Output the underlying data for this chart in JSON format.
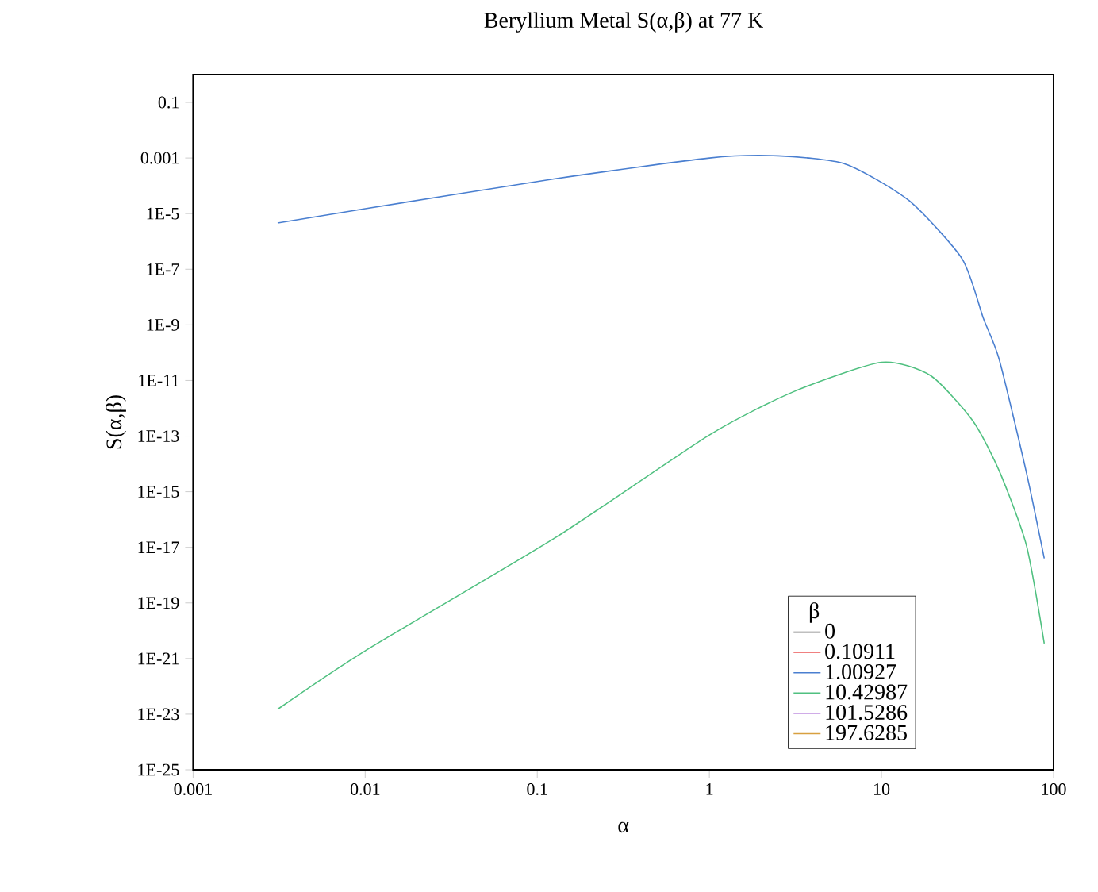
{
  "chart_data": {
    "type": "line",
    "title": "Beryllium Metal S(α,β) at 77 K",
    "xlabel": "α",
    "ylabel": "S(α,β)",
    "legend_title": "β",
    "log": "xy",
    "grid": false,
    "legend": "bottom right",
    "xlim": [
      0.001,
      100
    ],
    "xticks": [
      0.001,
      0.01,
      0.1,
      1,
      10,
      100
    ],
    "ylim": [
      1e-25,
      1
    ],
    "yticks": [
      {
        "value": 1e-25,
        "label": "1E-25"
      },
      {
        "value": 1e-23,
        "label": "1E-23"
      },
      {
        "value": 1e-21,
        "label": "1E-21"
      },
      {
        "value": 1e-19,
        "label": "1E-19"
      },
      {
        "value": 1e-17,
        "label": "1E-17"
      },
      {
        "value": 1e-15,
        "label": "1E-15"
      },
      {
        "value": 1e-13,
        "label": "1E-13"
      },
      {
        "value": 1e-11,
        "label": "1E-11"
      },
      {
        "value": 1e-09,
        "label": "1E-9"
      },
      {
        "value": 1e-07,
        "label": "1E-7"
      },
      {
        "value": 1e-05,
        "label": "1E-5"
      },
      {
        "value": 0.001,
        "label": "0.001"
      },
      {
        "value": 0.1,
        "label": "0.1"
      }
    ],
    "series": [
      {
        "name": "0",
        "color": "#808080"
      },
      {
        "name": "0.10911",
        "color": "#f08080"
      },
      {
        "name": "1.00927",
        "color": "#4a7fd0",
        "x": [
          0.0031,
          0.01,
          0.127,
          1,
          2.5,
          6.2,
          14.5,
          29.5,
          39,
          48.4,
          69.5,
          88.3
        ],
        "values": [
          4.6e-06,
          1.5e-05,
          0.00018,
          0.001,
          0.0012,
          0.0006,
          2.9e-05,
          2.3e-07,
          1.8e-09,
          5.5e-11,
          5e-15,
          4e-18
        ]
      },
      {
        "name": "10.42987",
        "color": "#50c080",
        "x": [
          0.0031,
          0.01,
          0.127,
          1,
          3.1,
          10,
          19.3,
          34,
          48.4,
          69.5,
          88.3
        ],
        "values": [
          1.5e-23,
          1.9e-21,
          2.2e-17,
          1.1e-13,
          4e-12,
          4.5e-11,
          1.5e-11,
          3.5e-13,
          5.5e-15,
          1.2e-17,
          3.5e-21
        ]
      },
      {
        "name": "101.5286",
        "color": "#c090e0"
      },
      {
        "name": "197.6285",
        "color": "#d8a040"
      }
    ]
  }
}
